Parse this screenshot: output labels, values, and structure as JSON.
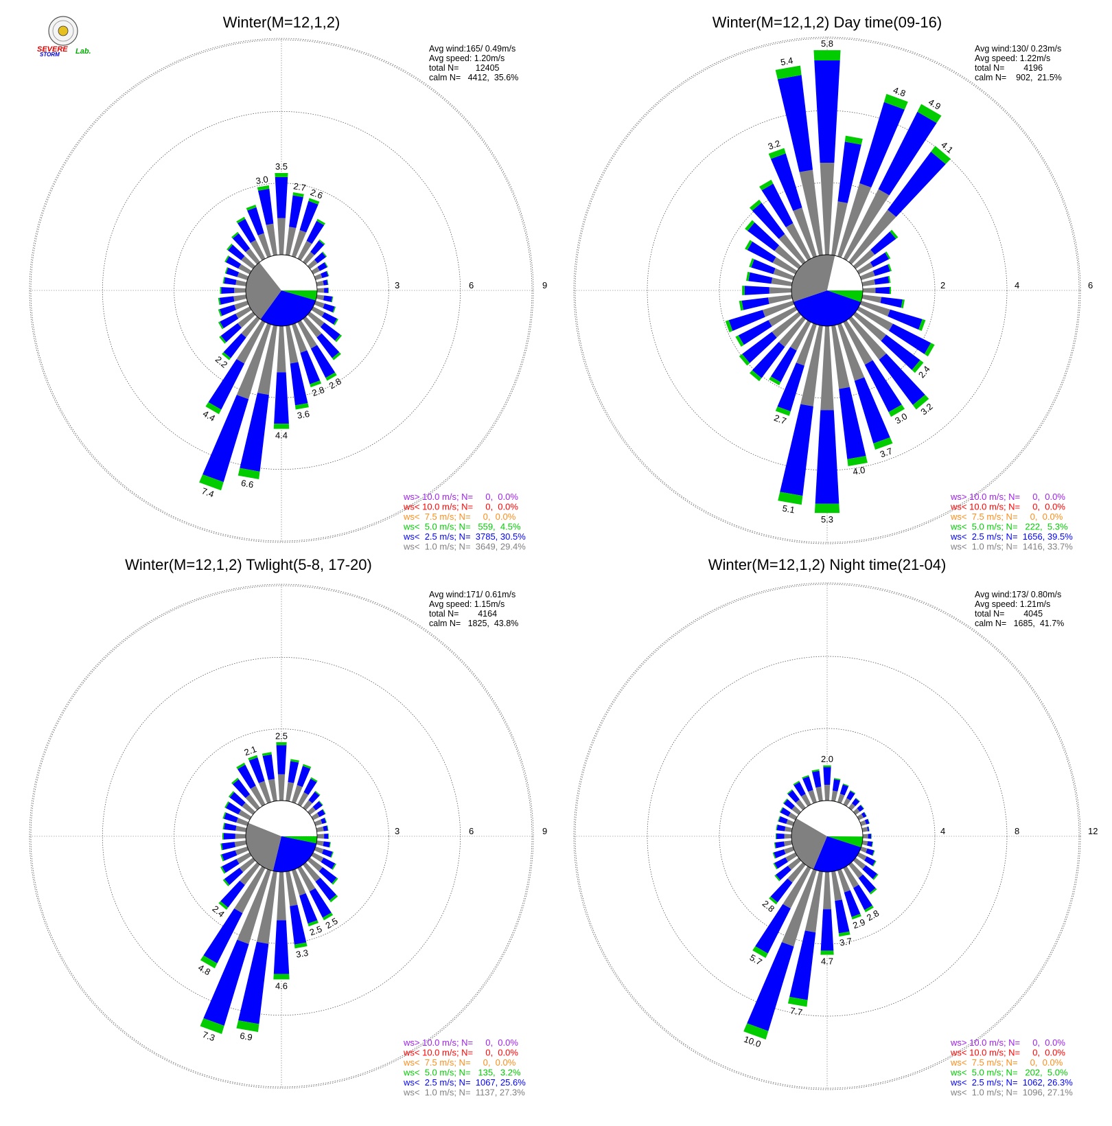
{
  "logo": {
    "text_a": "SEVERE",
    "text_b": "STORM",
    "text_c": "Lab."
  },
  "colors": {
    "calm": "#808080",
    "lt1": "#808080",
    "lt2_5": "#0000ff",
    "lt5": "#00cc00",
    "lt7_5": "#ff8c1a",
    "lt10": "#ff0000",
    "gt10": "#a020f0"
  },
  "chart_data": [
    {
      "type": "wind-rose",
      "title": "Winter(M=12,1,2)",
      "ring_labels": [
        "3",
        "6",
        "9"
      ],
      "rmax": 9,
      "info": [
        "Avg wind:165/ 0.49m/s",
        "Avg speed: 1.20m/s",
        "total N=       12405",
        "calm N=   4412,  35.6%"
      ],
      "calm_wedges": [
        {
          "label": "calm",
          "fraction": 0.356
        },
        {
          "label": "ws< 1.0 m/s",
          "fraction": 0.294
        },
        {
          "label": "ws< 2.5 m/s",
          "fraction": 0.305
        },
        {
          "label": "ws< 5.0 m/s",
          "fraction": 0.045
        }
      ],
      "bars": [
        {
          "dir": 0,
          "total": 3.5,
          "label": "3.5"
        },
        {
          "dir": 10,
          "total": 2.7,
          "label": "2.7"
        },
        {
          "dir": 20,
          "total": 2.6,
          "label": "2.6"
        },
        {
          "dir": 30,
          "total": 1.9
        },
        {
          "dir": 40,
          "total": 1.2
        },
        {
          "dir": 50,
          "total": 0.9
        },
        {
          "dir": 60,
          "total": 0.7
        },
        {
          "dir": 70,
          "total": 0.6
        },
        {
          "dir": 80,
          "total": 0.5
        },
        {
          "dir": 90,
          "total": 0.5
        },
        {
          "dir": 100,
          "total": 0.7
        },
        {
          "dir": 110,
          "total": 0.9
        },
        {
          "dir": 120,
          "total": 1.2
        },
        {
          "dir": 130,
          "total": 1.7
        },
        {
          "dir": 140,
          "total": 2.2
        },
        {
          "dir": 150,
          "total": 2.8,
          "label": "2.8"
        },
        {
          "dir": 160,
          "total": 2.8,
          "label": "2.8"
        },
        {
          "dir": 170,
          "total": 3.6,
          "label": "3.6"
        },
        {
          "dir": 180,
          "total": 4.4,
          "label": "4.4"
        },
        {
          "dir": 190,
          "total": 6.6,
          "label": "6.6"
        },
        {
          "dir": 200,
          "total": 7.4,
          "label": "7.4"
        },
        {
          "dir": 210,
          "total": 4.4,
          "label": "4.4"
        },
        {
          "dir": 220,
          "total": 2.2,
          "label": "2.2"
        },
        {
          "dir": 230,
          "total": 1.8
        },
        {
          "dir": 240,
          "total": 1.5
        },
        {
          "dir": 250,
          "total": 1.3
        },
        {
          "dir": 260,
          "total": 1.2
        },
        {
          "dir": 270,
          "total": 1.1
        },
        {
          "dir": 280,
          "total": 1.0
        },
        {
          "dir": 290,
          "total": 1.0
        },
        {
          "dir": 300,
          "total": 1.2
        },
        {
          "dir": 310,
          "total": 1.4
        },
        {
          "dir": 320,
          "total": 1.6
        },
        {
          "dir": 330,
          "total": 2.0
        },
        {
          "dir": 340,
          "total": 2.3
        },
        {
          "dir": 350,
          "total": 3.0,
          "label": "3.0"
        }
      ],
      "legend": [
        {
          "text": "ws> 10.0 m/s; N=     0,  0.0%",
          "color": "gt10"
        },
        {
          "text": "ws< 10.0 m/s; N=     0,  0.0%",
          "color": "lt10"
        },
        {
          "text": "ws<  7.5 m/s; N=     0,  0.0%",
          "color": "lt7_5"
        },
        {
          "text": "ws<  5.0 m/s; N=   559,  4.5%",
          "color": "lt5"
        },
        {
          "text": "ws<  2.5 m/s; N=  3785, 30.5%",
          "color": "lt2_5"
        },
        {
          "text": "ws<  1.0 m/s; N=  3649, 29.4%",
          "color": "lt1"
        }
      ]
    },
    {
      "type": "wind-rose",
      "title": "Winter(M=12,1,2) Day time(09-16)",
      "ring_labels": [
        "2",
        "4",
        "6"
      ],
      "rmax": 6,
      "info": [
        "Avg wind:130/ 0.23m/s",
        "Avg speed: 1.22m/s",
        "total N=        4196",
        "calm N=    902,  21.5%"
      ],
      "calm_wedges": [
        {
          "label": "calm",
          "fraction": 0.215
        },
        {
          "label": "ws< 1.0 m/s",
          "fraction": 0.337
        },
        {
          "label": "ws< 2.5 m/s",
          "fraction": 0.395
        },
        {
          "label": "ws< 5.0 m/s",
          "fraction": 0.053
        }
      ],
      "bars": [
        {
          "dir": 0,
          "total": 5.8,
          "label": "5.8"
        },
        {
          "dir": 10,
          "total": 3.4
        },
        {
          "dir": 20,
          "total": 4.8,
          "label": "4.8"
        },
        {
          "dir": 30,
          "total": 4.9,
          "label": "4.9"
        },
        {
          "dir": 40,
          "total": 4.1,
          "label": "4.1"
        },
        {
          "dir": 50,
          "total": 1.5
        },
        {
          "dir": 60,
          "total": 1.0
        },
        {
          "dir": 70,
          "total": 0.9
        },
        {
          "dir": 80,
          "total": 0.8
        },
        {
          "dir": 90,
          "total": 0.8
        },
        {
          "dir": 100,
          "total": 1.2
        },
        {
          "dir": 110,
          "total": 1.9
        },
        {
          "dir": 120,
          "total": 2.4
        },
        {
          "dir": 130,
          "total": 2.4,
          "label": "2.4"
        },
        {
          "dir": 140,
          "total": 3.2,
          "label": "3.2"
        },
        {
          "dir": 150,
          "total": 3.0,
          "label": "3.0"
        },
        {
          "dir": 160,
          "total": 3.7,
          "label": "3.7"
        },
        {
          "dir": 170,
          "total": 4.0,
          "label": "4.0"
        },
        {
          "dir": 180,
          "total": 5.3,
          "label": "5.3"
        },
        {
          "dir": 190,
          "total": 5.1,
          "label": "5.1"
        },
        {
          "dir": 200,
          "total": 2.7,
          "label": "2.7"
        },
        {
          "dir": 210,
          "total": 2.0
        },
        {
          "dir": 220,
          "total": 2.2
        },
        {
          "dir": 230,
          "total": 2.1
        },
        {
          "dir": 240,
          "total": 1.9
        },
        {
          "dir": 250,
          "total": 2.0
        },
        {
          "dir": 260,
          "total": 1.5
        },
        {
          "dir": 270,
          "total": 1.4
        },
        {
          "dir": 280,
          "total": 1.3
        },
        {
          "dir": 290,
          "total": 1.3
        },
        {
          "dir": 300,
          "total": 1.6
        },
        {
          "dir": 310,
          "total": 1.9
        },
        {
          "dir": 320,
          "total": 2.2
        },
        {
          "dir": 330,
          "total": 2.5
        },
        {
          "dir": 340,
          "total": 3.2,
          "label": "3.2"
        },
        {
          "dir": 350,
          "total": 5.4,
          "label": "5.4"
        }
      ],
      "legend": [
        {
          "text": "ws> 10.0 m/s; N=     0,  0.0%",
          "color": "gt10"
        },
        {
          "text": "ws< 10.0 m/s; N=     0,  0.0%",
          "color": "lt10"
        },
        {
          "text": "ws<  7.5 m/s; N=     0,  0.0%",
          "color": "lt7_5"
        },
        {
          "text": "ws<  5.0 m/s; N=   222,  5.3%",
          "color": "lt5"
        },
        {
          "text": "ws<  2.5 m/s; N=  1656, 39.5%",
          "color": "lt2_5"
        },
        {
          "text": "ws<  1.0 m/s; N=  1416, 33.7%",
          "color": "lt1"
        }
      ]
    },
    {
      "type": "wind-rose",
      "title": "Winter(M=12,1,2) Twlight(5-8, 17-20)",
      "ring_labels": [
        "3",
        "6",
        "9"
      ],
      "rmax": 9,
      "info": [
        "Avg wind:171/ 0.61m/s",
        "Avg speed: 1.15m/s",
        "total N=        4164",
        "calm N=   1825,  43.8%"
      ],
      "calm_wedges": [
        {
          "label": "calm",
          "fraction": 0.438
        },
        {
          "label": "ws< 1.0 m/s",
          "fraction": 0.273
        },
        {
          "label": "ws< 2.5 m/s",
          "fraction": 0.256
        },
        {
          "label": "ws< 5.0 m/s",
          "fraction": 0.032
        }
      ],
      "bars": [
        {
          "dir": 0,
          "total": 2.5,
          "label": "2.5"
        },
        {
          "dir": 10,
          "total": 1.8
        },
        {
          "dir": 20,
          "total": 1.7
        },
        {
          "dir": 30,
          "total": 1.3
        },
        {
          "dir": 40,
          "total": 0.9
        },
        {
          "dir": 50,
          "total": 0.7
        },
        {
          "dir": 60,
          "total": 0.6
        },
        {
          "dir": 70,
          "total": 0.5
        },
        {
          "dir": 80,
          "total": 0.5
        },
        {
          "dir": 90,
          "total": 0.5
        },
        {
          "dir": 100,
          "total": 0.6
        },
        {
          "dir": 110,
          "total": 0.8
        },
        {
          "dir": 120,
          "total": 1.1
        },
        {
          "dir": 130,
          "total": 1.5
        },
        {
          "dir": 140,
          "total": 2.0
        },
        {
          "dir": 150,
          "total": 2.5,
          "label": "2.5"
        },
        {
          "dir": 160,
          "total": 2.5,
          "label": "2.5"
        },
        {
          "dir": 170,
          "total": 3.3,
          "label": "3.3"
        },
        {
          "dir": 180,
          "total": 4.6,
          "label": "4.6"
        },
        {
          "dir": 190,
          "total": 6.9,
          "label": "6.9"
        },
        {
          "dir": 200,
          "total": 7.3,
          "label": "7.3"
        },
        {
          "dir": 210,
          "total": 4.8,
          "label": "4.8"
        },
        {
          "dir": 220,
          "total": 2.4,
          "label": "2.4"
        },
        {
          "dir": 230,
          "total": 1.6
        },
        {
          "dir": 240,
          "total": 1.4
        },
        {
          "dir": 250,
          "total": 1.2
        },
        {
          "dir": 260,
          "total": 1.1
        },
        {
          "dir": 270,
          "total": 1.0
        },
        {
          "dir": 280,
          "total": 1.0
        },
        {
          "dir": 290,
          "total": 1.1
        },
        {
          "dir": 300,
          "total": 1.2
        },
        {
          "dir": 310,
          "total": 1.3
        },
        {
          "dir": 320,
          "total": 1.6
        },
        {
          "dir": 330,
          "total": 2.0
        },
        {
          "dir": 340,
          "total": 2.1,
          "label": "2.1"
        },
        {
          "dir": 350,
          "total": 2.1
        }
      ],
      "legend": [
        {
          "text": "ws> 10.0 m/s; N=     0,  0.0%",
          "color": "gt10"
        },
        {
          "text": "ws< 10.0 m/s; N=     0,  0.0%",
          "color": "lt10"
        },
        {
          "text": "ws<  7.5 m/s; N=     0,  0.0%",
          "color": "lt7_5"
        },
        {
          "text": "ws<  5.0 m/s; N=   135,  3.2%",
          "color": "lt5"
        },
        {
          "text": "ws<  2.5 m/s; N=  1067, 25.6%",
          "color": "lt2_5"
        },
        {
          "text": "ws<  1.0 m/s; N=  1137, 27.3%",
          "color": "lt1"
        }
      ]
    },
    {
      "type": "wind-rose",
      "title": "Winter(M=12,1,2) Night time(21-04)",
      "ring_labels": [
        "4",
        "8",
        "12"
      ],
      "rmax": 12,
      "info": [
        "Avg wind:173/ 0.80m/s",
        "Avg speed: 1.21m/s",
        "total N=        4045",
        "calm N=   1685,  41.7%"
      ],
      "calm_wedges": [
        {
          "label": "calm",
          "fraction": 0.417
        },
        {
          "label": "ws< 1.0 m/s",
          "fraction": 0.271
        },
        {
          "label": "ws< 2.5 m/s",
          "fraction": 0.263
        },
        {
          "label": "ws< 5.0 m/s",
          "fraction": 0.05
        }
      ],
      "bars": [
        {
          "dir": 0,
          "total": 2.0,
          "label": "2.0"
        },
        {
          "dir": 10,
          "total": 1.3
        },
        {
          "dir": 20,
          "total": 1.1
        },
        {
          "dir": 30,
          "total": 0.9
        },
        {
          "dir": 40,
          "total": 0.7
        },
        {
          "dir": 50,
          "total": 0.6
        },
        {
          "dir": 60,
          "total": 0.5
        },
        {
          "dir": 70,
          "total": 0.5
        },
        {
          "dir": 80,
          "total": 0.4
        },
        {
          "dir": 90,
          "total": 0.5
        },
        {
          "dir": 100,
          "total": 0.6
        },
        {
          "dir": 110,
          "total": 0.8
        },
        {
          "dir": 120,
          "total": 1.1
        },
        {
          "dir": 130,
          "total": 1.6
        },
        {
          "dir": 140,
          "total": 2.1
        },
        {
          "dir": 150,
          "total": 2.8,
          "label": "2.8"
        },
        {
          "dir": 160,
          "total": 2.9,
          "label": "2.9"
        },
        {
          "dir": 170,
          "total": 3.7,
          "label": "3.7"
        },
        {
          "dir": 180,
          "total": 4.7,
          "label": "4.7"
        },
        {
          "dir": 190,
          "total": 7.7,
          "label": "7.7"
        },
        {
          "dir": 200,
          "total": 10.0,
          "label": "10.0"
        },
        {
          "dir": 210,
          "total": 5.7,
          "label": "5.7"
        },
        {
          "dir": 220,
          "total": 2.8,
          "label": "2.8"
        },
        {
          "dir": 230,
          "total": 1.7
        },
        {
          "dir": 240,
          "total": 1.4
        },
        {
          "dir": 250,
          "total": 1.2
        },
        {
          "dir": 260,
          "total": 1.0
        },
        {
          "dir": 270,
          "total": 0.9
        },
        {
          "dir": 280,
          "total": 0.9
        },
        {
          "dir": 290,
          "total": 0.9
        },
        {
          "dir": 300,
          "total": 1.0
        },
        {
          "dir": 310,
          "total": 1.1
        },
        {
          "dir": 320,
          "total": 1.3
        },
        {
          "dir": 330,
          "total": 1.5
        },
        {
          "dir": 340,
          "total": 1.6
        },
        {
          "dir": 350,
          "total": 1.8
        }
      ],
      "legend": [
        {
          "text": "ws> 10.0 m/s; N=     0,  0.0%",
          "color": "gt10"
        },
        {
          "text": "ws< 10.0 m/s; N=     0,  0.0%",
          "color": "lt10"
        },
        {
          "text": "ws<  7.5 m/s; N=     0,  0.0%",
          "color": "lt7_5"
        },
        {
          "text": "ws<  5.0 m/s; N=   202,  5.0%",
          "color": "lt5"
        },
        {
          "text": "ws<  2.5 m/s; N=  1062, 26.3%",
          "color": "lt2_5"
        },
        {
          "text": "ws<  1.0 m/s; N=  1096, 27.1%",
          "color": "lt1"
        }
      ]
    }
  ]
}
